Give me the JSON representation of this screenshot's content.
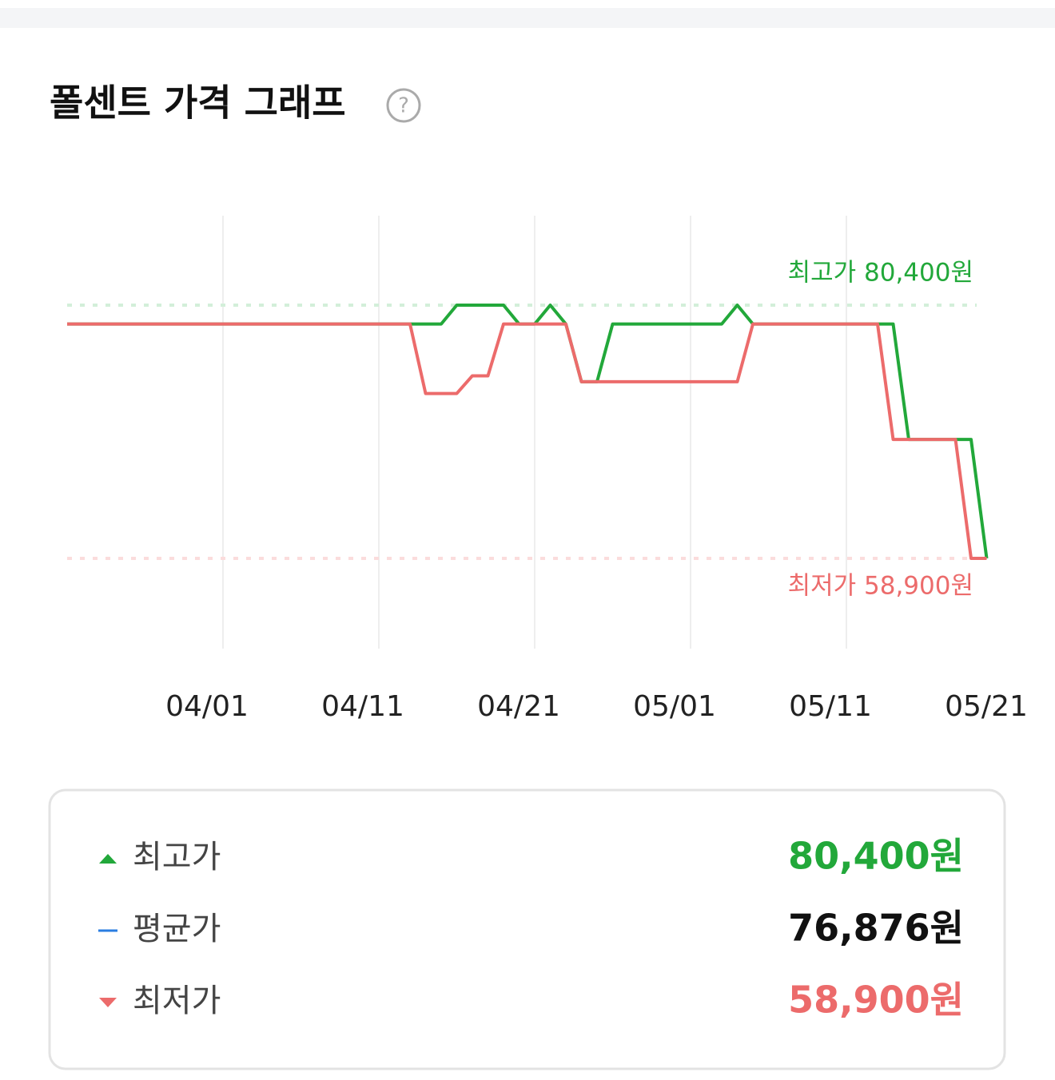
{
  "header": {
    "title": "폴센트 가격 그래프",
    "help_icon": "?"
  },
  "chart_data": {
    "type": "line",
    "x": [
      "03/22",
      "03/23",
      "03/24",
      "03/25",
      "03/26",
      "03/27",
      "03/28",
      "03/29",
      "03/30",
      "03/31",
      "04/01",
      "04/02",
      "04/03",
      "04/04",
      "04/05",
      "04/06",
      "04/07",
      "04/08",
      "04/09",
      "04/10",
      "04/11",
      "04/12",
      "04/13",
      "04/14",
      "04/15",
      "04/16",
      "04/17",
      "04/18",
      "04/19",
      "04/20",
      "04/21",
      "04/22",
      "04/23",
      "04/24",
      "04/25",
      "04/26",
      "04/27",
      "04/28",
      "04/29",
      "04/30",
      "05/01",
      "05/02",
      "05/03",
      "05/04",
      "05/05",
      "05/06",
      "05/07",
      "05/08",
      "05/09",
      "05/10",
      "05/11",
      "05/12",
      "05/13",
      "05/14",
      "05/15",
      "05/16",
      "05/17",
      "05/18",
      "05/19",
      "05/20"
    ],
    "series": [
      {
        "name": "최고가",
        "color": "#22a83a",
        "values": [
          78800,
          78800,
          78800,
          78800,
          78800,
          78800,
          78800,
          78800,
          78800,
          78800,
          78800,
          78800,
          78800,
          78800,
          78800,
          78800,
          78800,
          78800,
          78800,
          78800,
          78800,
          78800,
          78800,
          78800,
          78800,
          80400,
          80400,
          80400,
          80400,
          78800,
          78800,
          80400,
          78800,
          73900,
          73900,
          78800,
          78800,
          78800,
          78800,
          78800,
          78800,
          78800,
          78800,
          80400,
          78800,
          78800,
          78800,
          78800,
          78800,
          78800,
          78800,
          78800,
          78800,
          78800,
          69000,
          69000,
          69000,
          69000,
          69000,
          58900
        ]
      },
      {
        "name": "최저가",
        "color": "#ec6b6b",
        "values": [
          78800,
          78800,
          78800,
          78800,
          78800,
          78800,
          78800,
          78800,
          78800,
          78800,
          78800,
          78800,
          78800,
          78800,
          78800,
          78800,
          78800,
          78800,
          78800,
          78800,
          78800,
          78800,
          78800,
          72900,
          72900,
          72900,
          74400,
          74400,
          78800,
          78800,
          78800,
          78800,
          78800,
          73900,
          73900,
          73900,
          73900,
          73900,
          73900,
          73900,
          73900,
          73900,
          73900,
          73900,
          78800,
          78800,
          78800,
          78800,
          78800,
          78800,
          78800,
          78800,
          78800,
          69000,
          69000,
          69000,
          69000,
          69000,
          58900,
          58900
        ]
      }
    ],
    "reference_lines": [
      {
        "value": 80400,
        "label": "최고가 80,400원",
        "color": "#22a83a",
        "line_color": "#d3efd9"
      },
      {
        "value": 58900,
        "label": "최저가 58,900원",
        "color": "#ec6b6b",
        "line_color": "#fbdcdc"
      }
    ],
    "xticks": [
      "04/01",
      "04/11",
      "04/21",
      "05/01",
      "05/11",
      "05/21"
    ],
    "ylim": [
      56000,
      82000
    ],
    "grid": true
  },
  "summary": {
    "rows": [
      {
        "label": "최고가",
        "value": "80,400원",
        "color": "#22a83a",
        "icon": "up"
      },
      {
        "label": "평균가",
        "value": "76,876원",
        "color": "#111111",
        "icon": "dash"
      },
      {
        "label": "최저가",
        "value": "58,900원",
        "color": "#ec6b6b",
        "icon": "down"
      }
    ]
  }
}
